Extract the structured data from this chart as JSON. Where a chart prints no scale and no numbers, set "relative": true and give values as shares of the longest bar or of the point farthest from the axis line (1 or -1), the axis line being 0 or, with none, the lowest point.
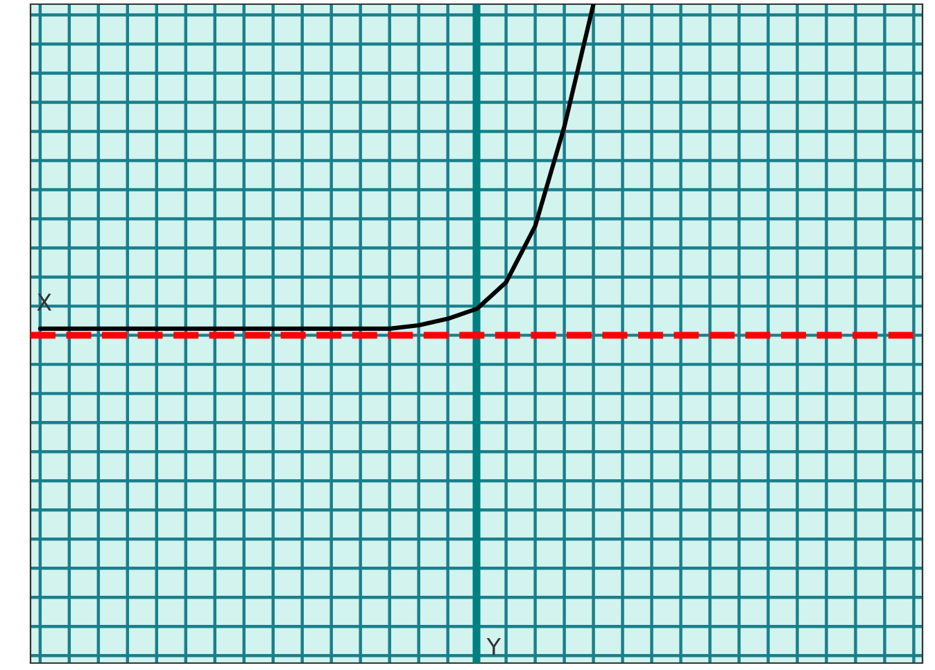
{
  "chart_data": {
    "type": "line",
    "relative": true,
    "annotations": [
      "X",
      "Y"
    ],
    "categories": [
      null,
      null,
      null,
      null,
      null,
      null,
      null,
      null,
      null,
      null,
      null,
      null,
      null,
      null,
      null,
      null,
      null,
      null,
      null,
      null
    ],
    "series": [
      {
        "color": "#000000",
        "values": [
          0.02,
          0.02,
          0.02,
          0.02,
          0.02,
          0.02,
          0.02,
          0.02,
          0.02,
          0.02,
          0.02,
          0.02,
          0.02,
          0.03,
          0.05,
          0.08,
          0.16,
          0.33,
          0.63,
          1.0
        ]
      }
    ],
    "ref_lines": [
      {
        "axis": "y",
        "value": 0,
        "color": "#ff0000",
        "line_style": "dashed"
      }
    ],
    "grid": true,
    "legend": false
  }
}
